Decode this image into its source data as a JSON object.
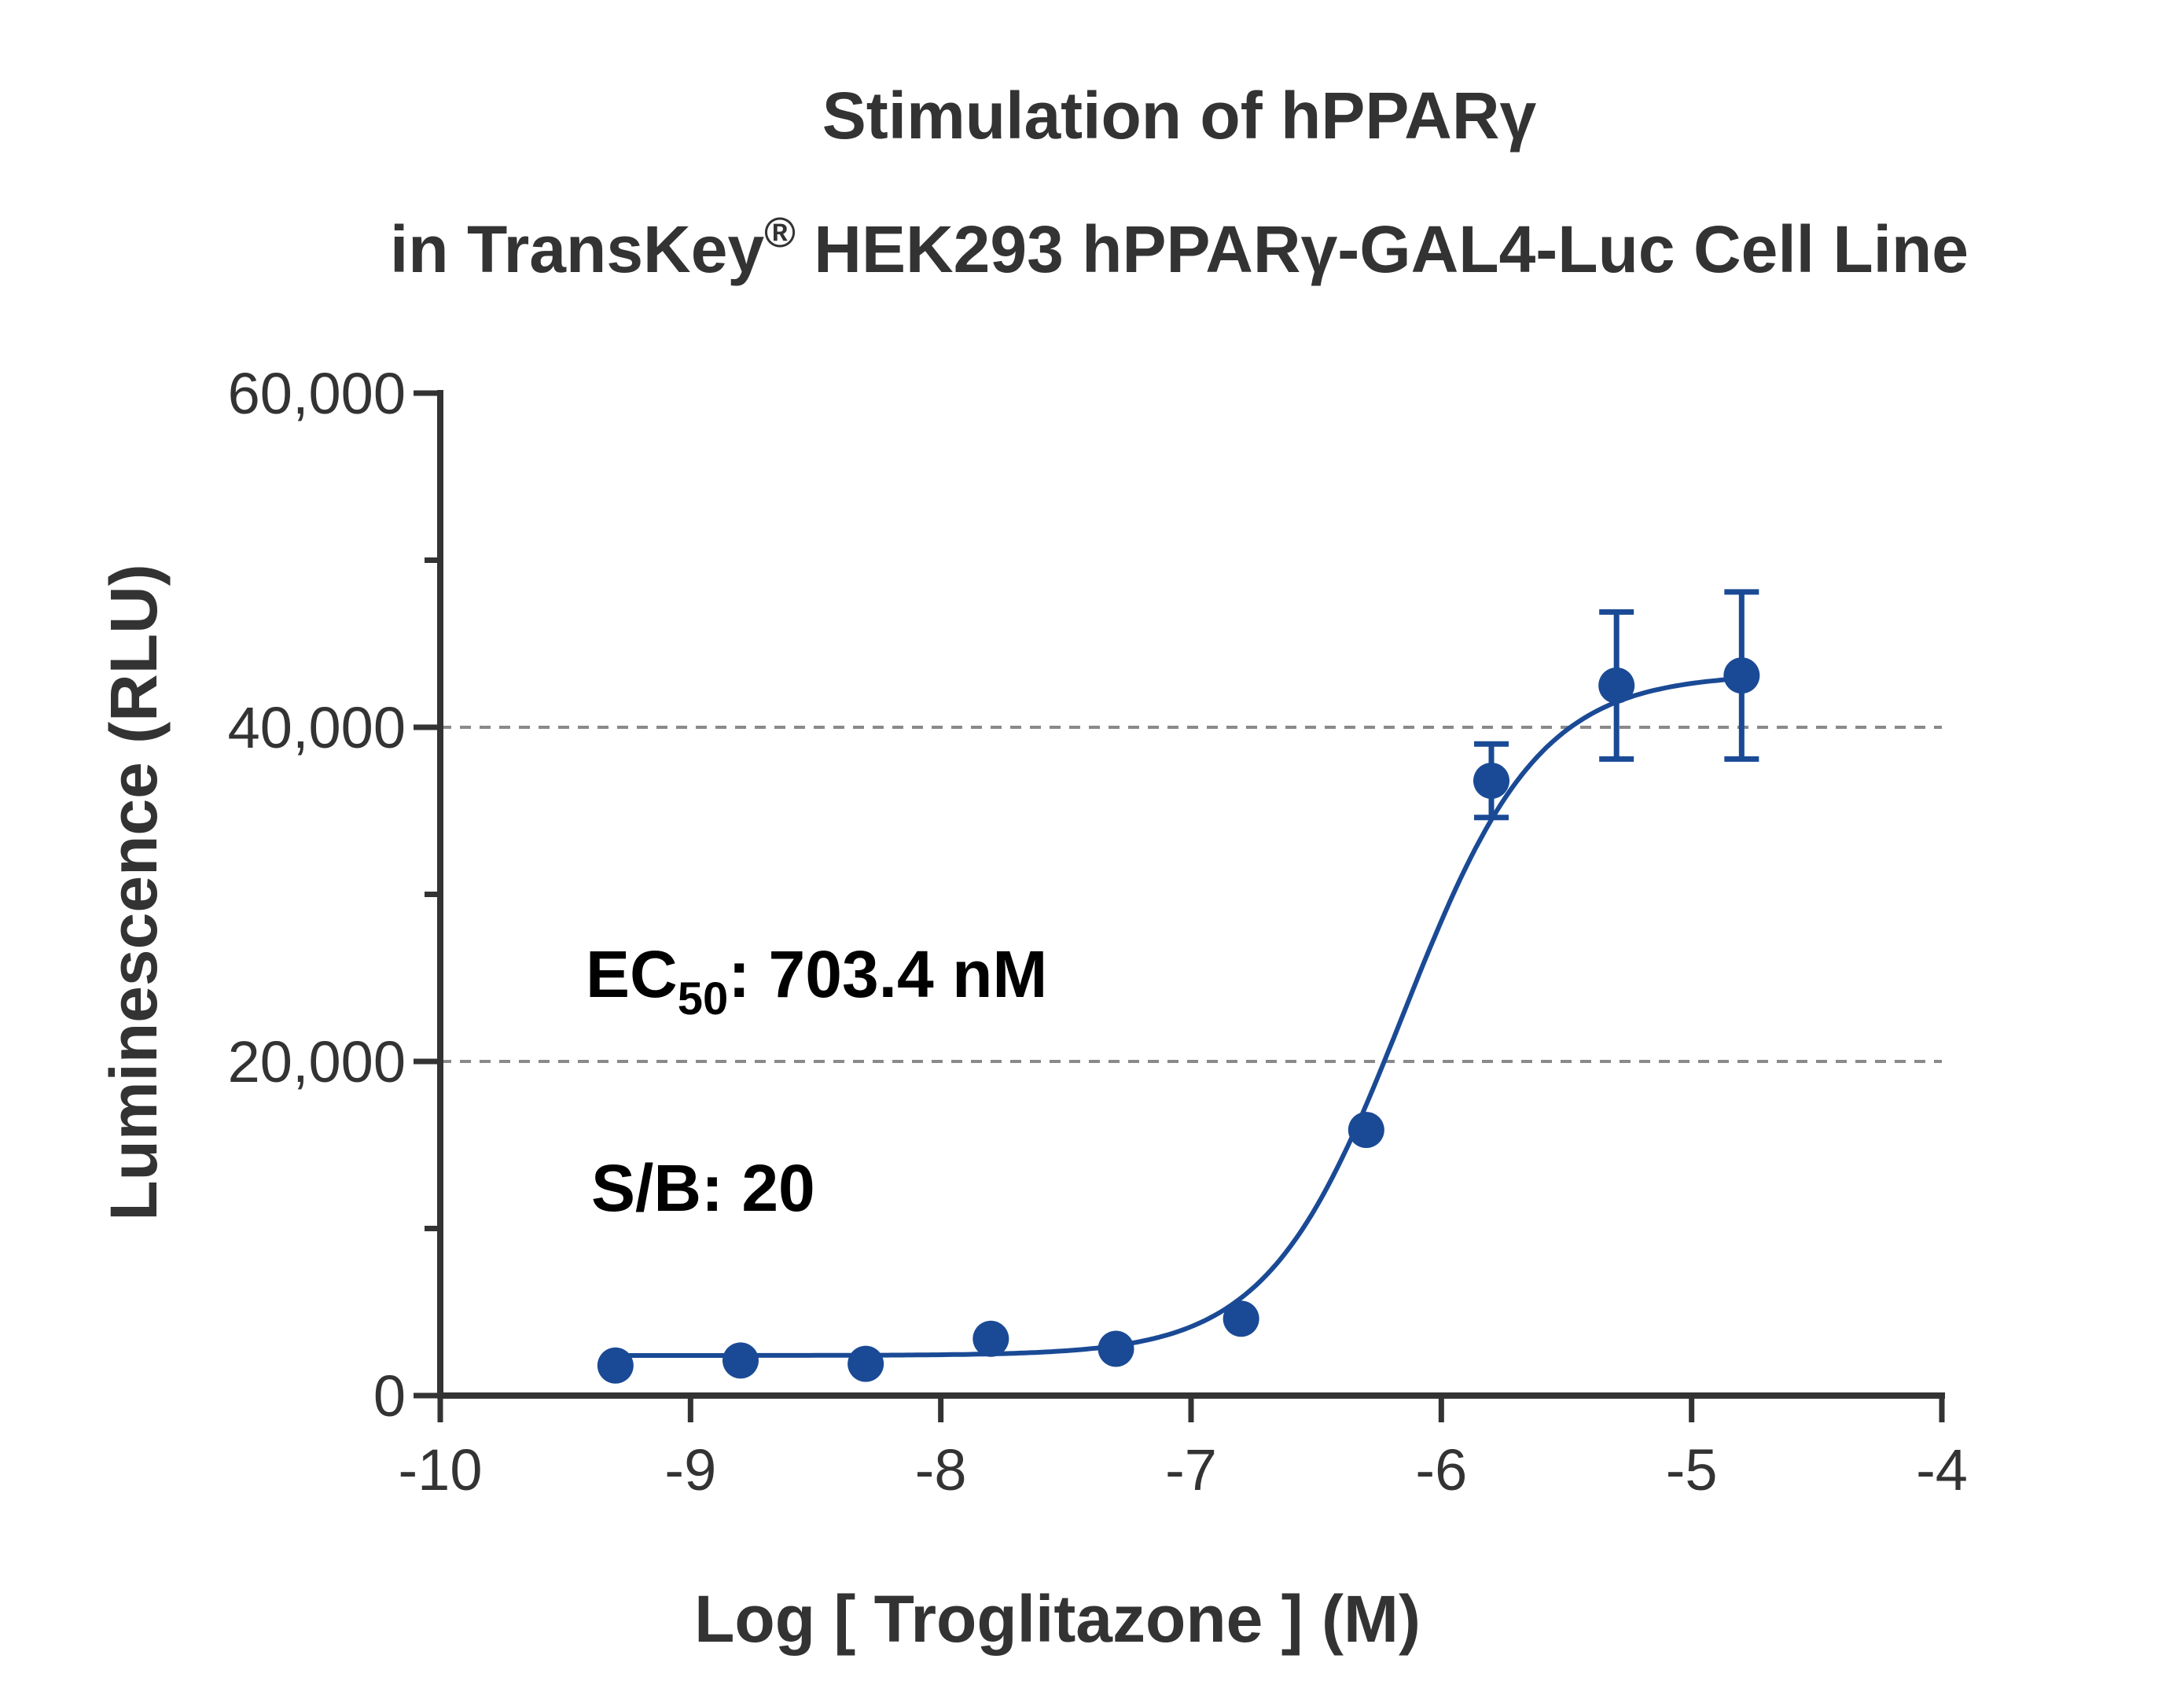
{
  "chart_data": {
    "type": "scatter",
    "title": "Stimulation of  hPPARγ",
    "subtitle_prefix": "in TransKey",
    "subtitle_mark": "®",
    "subtitle_suffix": " HEK293 hPPARγ-GAL4-Luc Cell Line",
    "xlabel": "Log [ Troglitazone ]  (M)",
    "ylabel": "Luminescence (RLU)",
    "xlim": [
      -10,
      -4
    ],
    "ylim": [
      0,
      60000
    ],
    "x_ticks": [
      -10,
      -9,
      -8,
      -7,
      -6,
      -5,
      -4
    ],
    "x_tick_labels": [
      "-10",
      "-9",
      "-8",
      "-7",
      "-6",
      "-5",
      "-4"
    ],
    "y_ticks": [
      0,
      20000,
      40000,
      60000
    ],
    "y_tick_labels": [
      "0",
      "20,000",
      "40,000",
      "60,000"
    ],
    "y_minor_ticks": [
      10000,
      30000,
      50000
    ],
    "grid": {
      "y_values": [
        20000,
        40000
      ],
      "style": "dashed"
    },
    "series": [
      {
        "x": [
          -9.3,
          -8.8,
          -8.3,
          -7.8,
          -7.3,
          -6.8,
          -6.3,
          -5.8,
          -5.3,
          -4.8
        ],
        "y": [
          1800,
          2100,
          1900,
          3400,
          2800,
          4600,
          15900,
          36800,
          42500,
          43100
        ],
        "error": [
          0,
          0,
          0,
          0,
          0,
          0,
          0,
          2200,
          4400,
          5000
        ],
        "fit": {
          "model": "4PL",
          "bottom": 2400,
          "top": 43200,
          "log_ec50": -6.153,
          "hill_slope": 1.6,
          "x_range": [
            -9.3,
            -4.8
          ]
        }
      }
    ],
    "annotations": {
      "ec50_prefix": "EC",
      "ec50_subscript": "50",
      "ec50_suffix": ": 703.4 nM",
      "sb": "S/B: 20"
    },
    "colors": {
      "series": "#1a4a95",
      "axis": "#333333",
      "grid": "#8a8a8a",
      "text": "#333333"
    }
  }
}
